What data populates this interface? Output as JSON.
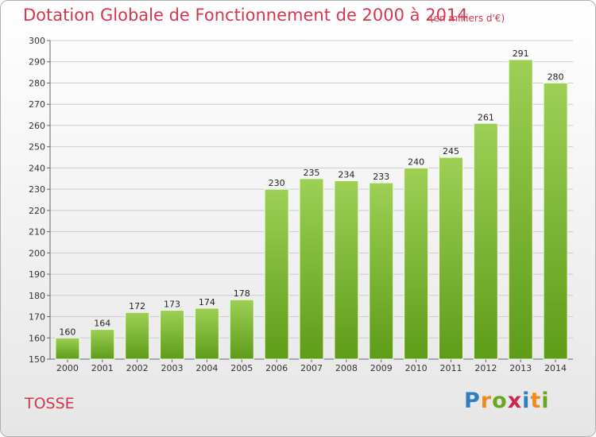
{
  "header": {
    "title": "Dotation Globale de Fonctionnement de 2000 à 2014",
    "subtitle": "(en milliers d'€)"
  },
  "footer": {
    "commune": "TOSSE",
    "logo_text": "Proxiti"
  },
  "colors": {
    "title": "#d2374f",
    "bar_light": "#9dd055",
    "bar_dark": "#5e9c18",
    "grid": "#cccccc"
  },
  "chart_data": {
    "type": "bar",
    "title": "Dotation Globale de Fonctionnement de 2000 à 2014",
    "subtitle": "(en milliers d'€)",
    "xlabel": "",
    "ylabel": "",
    "categories": [
      "2000",
      "2001",
      "2002",
      "2003",
      "2004",
      "2005",
      "2006",
      "2007",
      "2008",
      "2009",
      "2010",
      "2011",
      "2012",
      "2013",
      "2014"
    ],
    "values": [
      160,
      164,
      172,
      173,
      174,
      178,
      230,
      235,
      234,
      233,
      240,
      245,
      261,
      291,
      280
    ],
    "ylim": [
      150,
      300
    ],
    "yticks": [
      150,
      160,
      170,
      180,
      190,
      200,
      210,
      220,
      230,
      240,
      250,
      260,
      270,
      280,
      290,
      300
    ],
    "grid": true,
    "legend": "none"
  }
}
